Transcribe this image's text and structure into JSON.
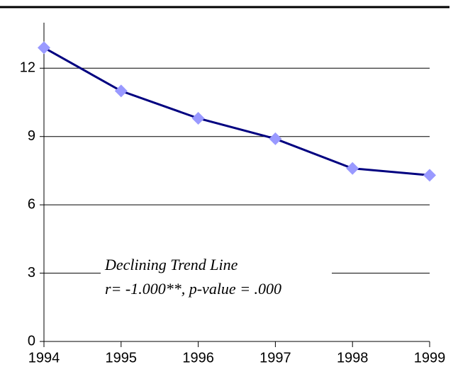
{
  "chart_data": {
    "type": "line",
    "x": [
      1994,
      1995,
      1996,
      1997,
      1998,
      1999
    ],
    "values": [
      12.9,
      11.0,
      9.8,
      8.9,
      7.6,
      7.3
    ],
    "color": "#000080",
    "marker_color": "#9999ff",
    "xlim": [
      1994,
      1999
    ],
    "xticks": [
      1994,
      1995,
      1996,
      1997,
      1998,
      1999
    ],
    "ylim": [
      0,
      14
    ],
    "yticks": [
      0,
      3,
      6,
      9,
      12
    ],
    "grid": true,
    "annotations": [
      "Declining Trend Line",
      "r= -1.000**, p-value = .000"
    ]
  }
}
